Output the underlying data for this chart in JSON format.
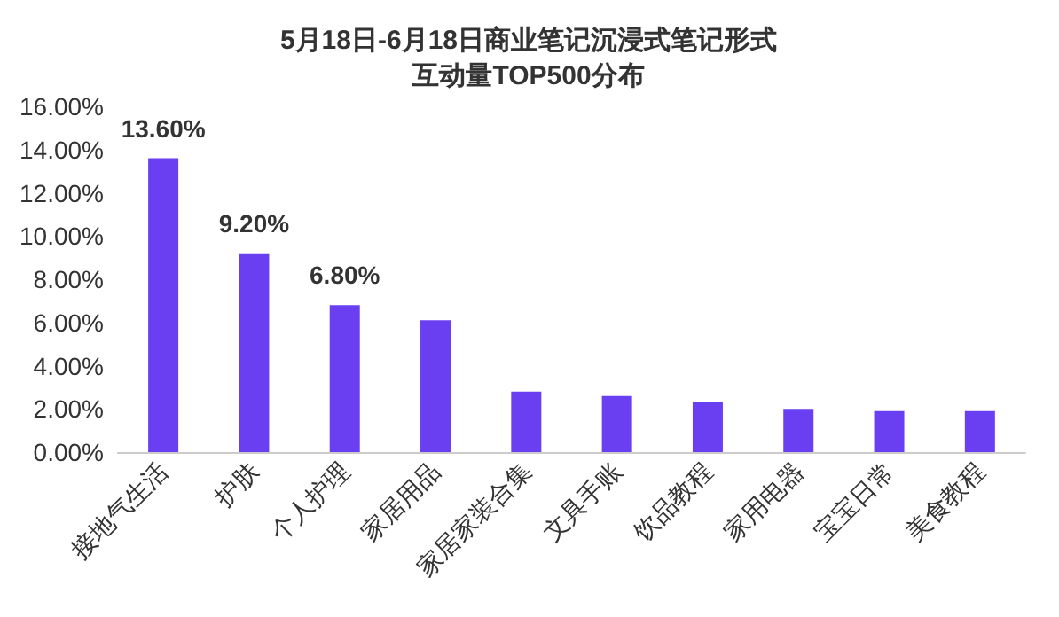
{
  "chart_data": {
    "type": "bar",
    "title": "5月18日-6月18日商业笔记沉浸式笔记形式互动量TOP500分布",
    "categories": [
      "接地气生活",
      "护肤",
      "个人护理",
      "家居用品",
      "家居家装合集",
      "文具手账",
      "饮品教程",
      "家用电器",
      "宝宝日常",
      "美食教程"
    ],
    "values": [
      13.6,
      9.2,
      6.8,
      6.1,
      2.8,
      2.6,
      2.3,
      2.0,
      1.9,
      1.9
    ],
    "value_labels": [
      "13.60%",
      "9.20%",
      "6.80%",
      null,
      null,
      null,
      null,
      null,
      null,
      null
    ],
    "color": "#6a3ff2",
    "ylim": [
      0,
      16
    ],
    "yticks": [
      {
        "value": 0,
        "label": "0.00%"
      },
      {
        "value": 2,
        "label": "2.00%"
      },
      {
        "value": 4,
        "label": "4.00%"
      },
      {
        "value": 6,
        "label": "6.00%"
      },
      {
        "value": 8,
        "label": "8.00%"
      },
      {
        "value": 10,
        "label": "10.00%"
      },
      {
        "value": 12,
        "label": "12.00%"
      },
      {
        "value": 14,
        "label": "14.00%"
      },
      {
        "value": 16,
        "label": "16.00%"
      }
    ],
    "grid": false
  }
}
